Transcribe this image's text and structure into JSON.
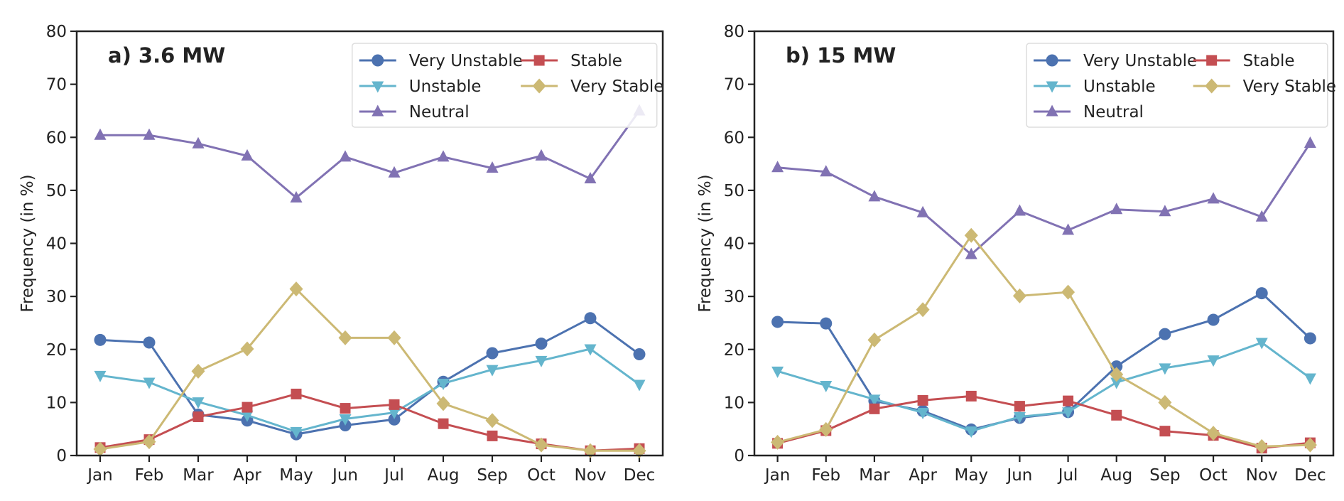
{
  "chart_data": [
    {
      "type": "line",
      "title": "a) 3.6 MW",
      "xlabel": "",
      "ylabel": "Frequency (in %)",
      "ylim": [
        0,
        80
      ],
      "yticks": [
        0,
        10,
        20,
        30,
        40,
        50,
        60,
        70,
        80
      ],
      "grid": false,
      "legend": "top-right",
      "categories": [
        "Jan",
        "Feb",
        "Mar",
        "Apr",
        "May",
        "Jun",
        "Jul",
        "Aug",
        "Sep",
        "Oct",
        "Nov",
        "Dec"
      ],
      "series": [
        {
          "name": "Very Unstable",
          "color": "#4c72b0",
          "marker": "circle",
          "values": [
            21.8,
            21.3,
            7.7,
            6.6,
            4.0,
            5.7,
            6.8,
            13.9,
            19.3,
            21.1,
            25.9,
            19.1
          ]
        },
        {
          "name": "Unstable",
          "color": "#64b5cd",
          "marker": "triangle-down",
          "values": [
            15.1,
            13.8,
            10.1,
            7.6,
            4.5,
            6.9,
            8.1,
            13.6,
            16.2,
            17.9,
            20.1,
            13.4
          ]
        },
        {
          "name": "Neutral",
          "color": "#8172b3",
          "marker": "triangle-up",
          "values": [
            60.4,
            60.4,
            58.8,
            56.5,
            48.6,
            56.3,
            53.3,
            56.3,
            54.2,
            56.5,
            52.2,
            65.0
          ]
        },
        {
          "name": "Stable",
          "color": "#c44e52",
          "marker": "square",
          "values": [
            1.5,
            3.0,
            7.3,
            9.1,
            11.6,
            8.9,
            9.6,
            6.0,
            3.7,
            2.2,
            0.9,
            1.3
          ]
        },
        {
          "name": "Very Stable",
          "color": "#ccb974",
          "marker": "diamond",
          "values": [
            1.2,
            2.6,
            15.9,
            20.1,
            31.4,
            22.2,
            22.2,
            9.8,
            6.6,
            2.0,
            0.9,
            0.9
          ]
        }
      ]
    },
    {
      "type": "line",
      "title": "b) 15 MW",
      "xlabel": "",
      "ylabel": "Frequency (in %)",
      "ylim": [
        0,
        80
      ],
      "yticks": [
        0,
        10,
        20,
        30,
        40,
        50,
        60,
        70,
        80
      ],
      "grid": false,
      "legend": "top-right",
      "categories": [
        "Jan",
        "Feb",
        "Mar",
        "Apr",
        "May",
        "Jun",
        "Jul",
        "Aug",
        "Sep",
        "Oct",
        "Nov",
        "Dec"
      ],
      "series": [
        {
          "name": "Very Unstable",
          "color": "#4c72b0",
          "marker": "circle",
          "values": [
            25.2,
            24.9,
            10.3,
            8.4,
            4.9,
            7.1,
            8.2,
            16.8,
            22.9,
            25.6,
            30.6,
            22.1
          ]
        },
        {
          "name": "Unstable",
          "color": "#64b5cd",
          "marker": "triangle-down",
          "values": [
            15.9,
            13.2,
            10.6,
            8.1,
            4.6,
            7.3,
            8.2,
            13.8,
            16.5,
            18.0,
            21.3,
            14.6
          ]
        },
        {
          "name": "Neutral",
          "color": "#8172b3",
          "marker": "triangle-up",
          "values": [
            54.3,
            53.5,
            48.8,
            45.8,
            37.9,
            46.1,
            42.5,
            46.4,
            46.0,
            48.4,
            45.0,
            58.9
          ]
        },
        {
          "name": "Stable",
          "color": "#c44e52",
          "marker": "square",
          "values": [
            2.3,
            4.7,
            8.8,
            10.4,
            11.2,
            9.3,
            10.3,
            7.6,
            4.6,
            3.8,
            1.4,
            2.4
          ]
        },
        {
          "name": "Very Stable",
          "color": "#ccb974",
          "marker": "diamond",
          "values": [
            2.5,
            4.9,
            21.8,
            27.5,
            41.5,
            30.1,
            30.8,
            15.3,
            10.0,
            4.2,
            1.7,
            2.0
          ]
        }
      ]
    }
  ]
}
